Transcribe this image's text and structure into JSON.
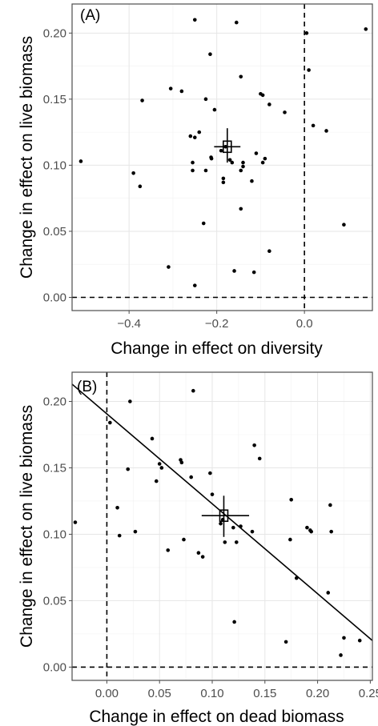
{
  "chart_data": [
    {
      "type": "scatter",
      "panel_label": "(A)",
      "xlabel": "Change in effect on diversity",
      "ylabel": "Change in effect on live biomass",
      "xlim": [
        -0.53,
        0.155
      ],
      "ylim": [
        -0.01,
        0.222
      ],
      "x_ticks": [
        -0.4,
        -0.2,
        0.0
      ],
      "x_tick_labels": [
        "−0.4",
        "−0.2",
        "0.0"
      ],
      "y_ticks": [
        0.0,
        0.05,
        0.1,
        0.15,
        0.2
      ],
      "y_tick_labels": [
        "0.00",
        "0.05",
        "0.10",
        "0.15",
        "0.20"
      ],
      "reference_lines": {
        "x": 0.0,
        "y": 0.0
      },
      "grid": true,
      "fit_line": null,
      "mean": {
        "x": -0.176,
        "y": 0.114,
        "x_ci": [
          -0.206,
          -0.146
        ],
        "y_ci": [
          0.102,
          0.128
        ]
      },
      "points": [
        [
          -0.51,
          0.103
        ],
        [
          -0.39,
          0.094
        ],
        [
          -0.375,
          0.084
        ],
        [
          -0.37,
          0.149
        ],
        [
          -0.31,
          0.023
        ],
        [
          -0.305,
          0.158
        ],
        [
          -0.28,
          0.156
        ],
        [
          -0.26,
          0.122
        ],
        [
          -0.255,
          0.096
        ],
        [
          -0.255,
          0.102
        ],
        [
          -0.25,
          0.121
        ],
        [
          -0.25,
          0.21
        ],
        [
          -0.25,
          0.009
        ],
        [
          -0.24,
          0.125
        ],
        [
          -0.23,
          0.056
        ],
        [
          -0.225,
          0.096
        ],
        [
          -0.225,
          0.15
        ],
        [
          -0.215,
          0.184
        ],
        [
          -0.213,
          0.106
        ],
        [
          -0.212,
          0.105
        ],
        [
          -0.205,
          0.142
        ],
        [
          -0.19,
          0.111
        ],
        [
          -0.185,
          0.09
        ],
        [
          -0.185,
          0.087
        ],
        [
          -0.18,
          0.114
        ],
        [
          -0.17,
          0.104
        ],
        [
          -0.165,
          0.102
        ],
        [
          -0.16,
          0.02
        ],
        [
          -0.155,
          0.208
        ],
        [
          -0.145,
          0.167
        ],
        [
          -0.145,
          0.096
        ],
        [
          -0.145,
          0.067
        ],
        [
          -0.14,
          0.102
        ],
        [
          -0.14,
          0.099
        ],
        [
          -0.12,
          0.088
        ],
        [
          -0.115,
          0.019
        ],
        [
          -0.11,
          0.109
        ],
        [
          -0.1,
          0.154
        ],
        [
          -0.095,
          0.153
        ],
        [
          -0.095,
          0.102
        ],
        [
          -0.09,
          0.105
        ],
        [
          -0.08,
          0.146
        ],
        [
          -0.08,
          0.035
        ],
        [
          -0.045,
          0.14
        ],
        [
          0.005,
          0.2
        ],
        [
          0.01,
          0.172
        ],
        [
          0.02,
          0.13
        ],
        [
          0.05,
          0.126
        ],
        [
          0.09,
          0.055
        ],
        [
          0.14,
          0.203
        ]
      ]
    },
    {
      "type": "scatter",
      "panel_label": "(B)",
      "xlabel": "Change in effect on dead biomass",
      "ylabel": "Change in effect on live biomass",
      "xlim": [
        -0.033,
        0.252
      ],
      "ylim": [
        -0.01,
        0.222
      ],
      "x_ticks": [
        0.0,
        0.05,
        0.1,
        0.15,
        0.2,
        0.25
      ],
      "x_tick_labels": [
        "0.00",
        "0.05",
        "0.10",
        "0.15",
        "0.20",
        "0.25"
      ],
      "y_ticks": [
        0.0,
        0.05,
        0.1,
        0.15,
        0.2
      ],
      "y_tick_labels": [
        "0.00",
        "0.05",
        "0.10",
        "0.15",
        "0.20"
      ],
      "reference_lines": {
        "x": 0.0,
        "y": 0.0
      },
      "grid": true,
      "fit_line": {
        "x": [
          -0.033,
          0.252
        ],
        "y": [
          0.213,
          0.02
        ]
      },
      "mean": {
        "x": 0.111,
        "y": 0.114,
        "x_ci": [
          0.09,
          0.135
        ],
        "y_ci": [
          0.098,
          0.129
        ]
      },
      "points": [
        [
          -0.03,
          0.109
        ],
        [
          0.003,
          0.184
        ],
        [
          0.01,
          0.12
        ],
        [
          0.012,
          0.099
        ],
        [
          0.02,
          0.149
        ],
        [
          0.022,
          0.2
        ],
        [
          0.027,
          0.102
        ],
        [
          0.043,
          0.172
        ],
        [
          0.047,
          0.14
        ],
        [
          0.05,
          0.153
        ],
        [
          0.052,
          0.15
        ],
        [
          0.058,
          0.088
        ],
        [
          0.07,
          0.156
        ],
        [
          0.071,
          0.154
        ],
        [
          0.073,
          0.096
        ],
        [
          0.08,
          0.143
        ],
        [
          0.082,
          0.208
        ],
        [
          0.087,
          0.086
        ],
        [
          0.091,
          0.083
        ],
        [
          0.098,
          0.146
        ],
        [
          0.1,
          0.13
        ],
        [
          0.108,
          0.108
        ],
        [
          0.11,
          0.111
        ],
        [
          0.112,
          0.094
        ],
        [
          0.12,
          0.105
        ],
        [
          0.121,
          0.034
        ],
        [
          0.123,
          0.094
        ],
        [
          0.127,
          0.106
        ],
        [
          0.138,
          0.102
        ],
        [
          0.14,
          0.167
        ],
        [
          0.145,
          0.157
        ],
        [
          0.17,
          0.019
        ],
        [
          0.174,
          0.096
        ],
        [
          0.175,
          0.126
        ],
        [
          0.18,
          0.067
        ],
        [
          0.19,
          0.105
        ],
        [
          0.193,
          0.103
        ],
        [
          0.194,
          0.102
        ],
        [
          0.21,
          0.056
        ],
        [
          0.212,
          0.122
        ],
        [
          0.213,
          0.102
        ],
        [
          0.222,
          0.009
        ],
        [
          0.225,
          0.022
        ],
        [
          0.24,
          0.02
        ]
      ]
    }
  ]
}
